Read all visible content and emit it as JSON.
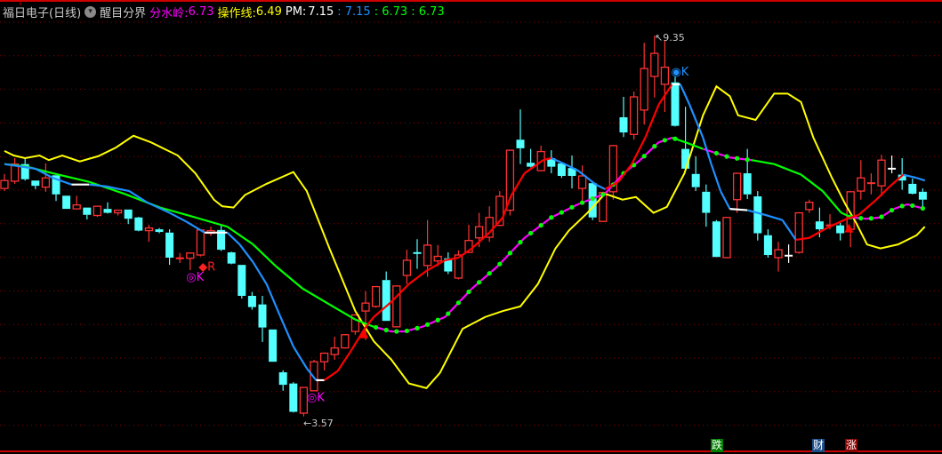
{
  "header": {
    "title": "福日电子(日线)",
    "indicator_icon": "chevron-down-circle-icon",
    "indicator_name": "醒目分界",
    "fsl_label": "分水岭:",
    "fsl_value": "6.73",
    "czx_label": "操作线:",
    "czx_value": "6.49",
    "pm_label": "PM:",
    "pm_v1": "7.15",
    "pm_v2": ": 7.15",
    "pm_v3": ": 6.73",
    "pm_v4": ": 6.73"
  },
  "colors": {
    "up": "#ff3232",
    "down": "#54ffff",
    "doji_white": "#ffffff",
    "fsl": "#ff00ff",
    "czx": "#ffff00",
    "pm_blue": "#1e90ff",
    "green": "#00ff00",
    "grid": "#8b0000",
    "border": "#cc0000"
  },
  "badges": [
    {
      "label": "跌",
      "color": "#008000"
    },
    {
      "label": "财",
      "color": "#1c4f8a"
    },
    {
      "label": "涨",
      "color": "#8b0000"
    }
  ],
  "chart_data": {
    "type": "candlestick",
    "price_range": [
      3.0,
      9.89
    ],
    "grid": true,
    "high_label": "9.35",
    "low_label": "3.57",
    "candles_ohlc": [
      [
        7.03,
        7.25,
        6.99,
        7.15
      ],
      [
        7.14,
        7.49,
        7.1,
        7.4
      ],
      [
        7.4,
        7.49,
        7.15,
        7.17
      ],
      [
        7.15,
        7.15,
        7.02,
        7.07
      ],
      [
        7.05,
        7.41,
        6.98,
        7.19
      ],
      [
        7.23,
        7.23,
        6.84,
        6.94
      ],
      [
        6.92,
        6.92,
        6.72,
        6.72
      ],
      [
        6.72,
        6.92,
        6.72,
        6.78
      ],
      [
        6.74,
        6.74,
        6.56,
        6.63
      ],
      [
        6.62,
        6.77,
        6.6,
        6.76
      ],
      [
        6.72,
        6.82,
        6.65,
        6.66
      ],
      [
        6.66,
        6.71,
        6.62,
        6.7
      ],
      [
        6.71,
        6.71,
        6.49,
        6.57
      ],
      [
        6.59,
        6.6,
        6.38,
        6.39
      ],
      [
        6.39,
        6.48,
        6.22,
        6.43
      ],
      [
        6.41,
        6.43,
        6.35,
        6.37
      ],
      [
        6.36,
        6.41,
        5.87,
        5.98
      ],
      [
        5.96,
        6.05,
        5.9,
        5.97
      ],
      [
        5.97,
        6.06,
        5.79,
        6.05
      ],
      [
        6.02,
        6.41,
        6.0,
        6.4
      ],
      [
        6.35,
        6.45,
        6.31,
        6.39
      ],
      [
        6.4,
        6.48,
        6.08,
        6.1
      ],
      [
        6.06,
        6.07,
        5.88,
        5.89
      ],
      [
        5.87,
        5.87,
        5.36,
        5.4
      ],
      [
        5.4,
        5.46,
        5.19,
        5.23
      ],
      [
        5.27,
        5.4,
        4.7,
        4.92
      ],
      [
        4.89,
        4.89,
        4.4,
        4.4
      ],
      [
        4.24,
        4.27,
        3.96,
        4.05
      ],
      [
        4.07,
        4.09,
        3.63,
        3.64
      ],
      [
        3.62,
        4.02,
        3.57,
        4.01
      ],
      [
        3.96,
        4.43,
        3.95,
        4.4
      ],
      [
        4.4,
        4.54,
        4.27,
        4.53
      ],
      [
        4.51,
        4.78,
        4.43,
        4.61
      ],
      [
        4.61,
        4.82,
        4.6,
        4.81
      ],
      [
        4.86,
        5.12,
        4.81,
        5.11
      ],
      [
        5.17,
        5.47,
        4.73,
        5.29
      ],
      [
        5.24,
        5.55,
        5.22,
        5.54
      ],
      [
        5.64,
        5.77,
        5.02,
        5.02
      ],
      [
        4.93,
        5.56,
        4.92,
        5.55
      ],
      [
        5.71,
        6.1,
        5.58,
        5.94
      ],
      [
        6.05,
        6.26,
        5.81,
        6.04
      ],
      [
        5.86,
        6.55,
        5.69,
        6.17
      ],
      [
        5.93,
        6.17,
        5.85,
        6.0
      ],
      [
        5.97,
        6.06,
        5.73,
        5.77
      ],
      [
        5.67,
        6.09,
        5.65,
        6.02
      ],
      [
        6.06,
        6.48,
        6.05,
        6.24
      ],
      [
        6.28,
        6.66,
        6.14,
        6.45
      ],
      [
        6.29,
        6.76,
        6.22,
        6.59
      ],
      [
        6.47,
        6.99,
        6.46,
        6.91
      ],
      [
        6.7,
        7.62,
        6.62,
        7.61
      ],
      [
        7.77,
        8.23,
        7.4,
        7.64
      ],
      [
        7.42,
        7.63,
        7.35,
        7.36
      ],
      [
        7.3,
        7.68,
        7.29,
        7.59
      ],
      [
        7.49,
        7.61,
        7.26,
        7.36
      ],
      [
        7.41,
        7.42,
        7.19,
        7.22
      ],
      [
        7.34,
        7.53,
        7.03,
        7.22
      ],
      [
        7.03,
        7.38,
        6.84,
        7.22
      ],
      [
        7.11,
        7.12,
        6.55,
        6.59
      ],
      [
        6.53,
        6.98,
        6.52,
        6.97
      ],
      [
        6.98,
        7.69,
        6.86,
        7.68
      ],
      [
        8.11,
        8.42,
        7.81,
        7.88
      ],
      [
        7.85,
        8.5,
        7.77,
        8.42
      ],
      [
        8.22,
        9.24,
        8.0,
        8.85
      ],
      [
        8.73,
        9.35,
        8.41,
        9.08
      ],
      [
        8.61,
        9.28,
        8.19,
        8.87
      ],
      [
        8.64,
        8.73,
        7.97,
        7.98
      ],
      [
        7.63,
        8.27,
        7.3,
        7.33
      ],
      [
        7.25,
        7.52,
        6.99,
        7.05
      ],
      [
        6.98,
        7.09,
        6.45,
        6.66
      ],
      [
        6.53,
        6.55,
        5.99,
        5.99
      ],
      [
        5.98,
        6.6,
        5.97,
        6.59
      ],
      [
        6.86,
        7.27,
        6.66,
        7.26
      ],
      [
        7.26,
        7.63,
        6.87,
        6.94
      ],
      [
        6.91,
        6.99,
        6.24,
        6.35
      ],
      [
        6.32,
        6.41,
        5.98,
        6.02
      ],
      [
        5.98,
        6.22,
        5.77,
        6.1
      ],
      [
        6.01,
        6.18,
        5.9,
        6.01
      ],
      [
        6.06,
        6.67,
        6.04,
        6.66
      ],
      [
        6.71,
        6.86,
        6.66,
        6.82
      ],
      [
        6.53,
        6.74,
        6.29,
        6.41
      ],
      [
        6.46,
        6.64,
        6.41,
        6.47
      ],
      [
        6.47,
        6.52,
        6.24,
        6.35
      ],
      [
        6.41,
        6.99,
        6.14,
        6.98
      ],
      [
        6.99,
        7.46,
        6.86,
        7.19
      ],
      [
        7.1,
        7.26,
        6.94,
        7.11
      ],
      [
        7.07,
        7.54,
        6.91,
        7.46
      ],
      [
        7.33,
        7.53,
        7.26,
        7.33
      ],
      [
        7.24,
        7.49,
        7.01,
        7.15
      ],
      [
        7.1,
        7.18,
        6.94,
        6.95
      ],
      [
        6.98,
        7.03,
        6.75,
        6.86
      ]
    ],
    "white_doji_bars": [
      76,
      86
    ],
    "series": [
      {
        "name": "操作线",
        "color": "#ffff00",
        "points": [
          [
            0,
            7.6
          ],
          [
            0.9,
            7.53
          ],
          [
            2,
            7.49
          ],
          [
            3.4,
            7.53
          ],
          [
            4.3,
            7.46
          ],
          [
            5.6,
            7.53
          ],
          [
            7.3,
            7.44
          ],
          [
            9.1,
            7.52
          ],
          [
            10.8,
            7.65
          ],
          [
            12.5,
            7.83
          ],
          [
            14.2,
            7.73
          ],
          [
            16.8,
            7.53
          ],
          [
            18.5,
            7.26
          ],
          [
            20.3,
            6.86
          ],
          [
            21.1,
            6.76
          ],
          [
            22.2,
            6.74
          ],
          [
            23.3,
            6.93
          ],
          [
            25.4,
            7.1
          ],
          [
            28,
            7.28
          ],
          [
            29.3,
            6.99
          ],
          [
            31.5,
            6.12
          ],
          [
            34,
            5.17
          ],
          [
            35.8,
            4.71
          ],
          [
            37.5,
            4.43
          ],
          [
            39.2,
            4.07
          ],
          [
            40.9,
            4.0
          ],
          [
            42.2,
            4.23
          ],
          [
            44.4,
            4.9
          ],
          [
            46.6,
            5.08
          ],
          [
            48.3,
            5.17
          ],
          [
            50,
            5.24
          ],
          [
            51.7,
            5.58
          ],
          [
            53.4,
            6.12
          ],
          [
            54.7,
            6.39
          ],
          [
            56.5,
            6.66
          ],
          [
            58.2,
            6.95
          ],
          [
            59.9,
            6.86
          ],
          [
            61.2,
            6.9
          ],
          [
            62.9,
            6.66
          ],
          [
            64.2,
            6.75
          ],
          [
            65.9,
            7.26
          ],
          [
            67.7,
            8.14
          ],
          [
            69,
            8.58
          ],
          [
            70.3,
            8.43
          ],
          [
            71.1,
            8.14
          ],
          [
            72.8,
            8.07
          ],
          [
            74.6,
            8.47
          ],
          [
            75.9,
            8.47
          ],
          [
            77.2,
            8.34
          ],
          [
            78.4,
            7.8
          ],
          [
            80.2,
            7.19
          ],
          [
            81.5,
            6.79
          ],
          [
            82.5,
            6.52
          ],
          [
            83.6,
            6.18
          ],
          [
            84.9,
            6.12
          ],
          [
            86.6,
            6.18
          ],
          [
            88.4,
            6.32
          ],
          [
            89.2,
            6.45
          ]
        ]
      },
      {
        "name": "分水岭",
        "color": "#00ff00",
        "alt_color": "#ff00ff",
        "alt_ranges": [
          [
            36,
            65
          ],
          [
            69,
            72
          ],
          [
            82,
            89.2
          ]
        ],
        "points": [
          [
            0,
            7.4
          ],
          [
            2.2,
            7.36
          ],
          [
            4.7,
            7.26
          ],
          [
            8.2,
            7.13
          ],
          [
            11.6,
            6.95
          ],
          [
            15.1,
            6.74
          ],
          [
            18.5,
            6.59
          ],
          [
            21.6,
            6.45
          ],
          [
            24.1,
            6.18
          ],
          [
            26.3,
            5.85
          ],
          [
            28.9,
            5.51
          ],
          [
            31.5,
            5.27
          ],
          [
            34,
            5.04
          ],
          [
            35.8,
            4.93
          ],
          [
            37.5,
            4.86
          ],
          [
            38.8,
            4.86
          ],
          [
            40.5,
            4.93
          ],
          [
            42.7,
            5.08
          ],
          [
            45.3,
            5.51
          ],
          [
            47.8,
            5.85
          ],
          [
            50.4,
            6.28
          ],
          [
            53,
            6.59
          ],
          [
            55.6,
            6.79
          ],
          [
            58.2,
            6.95
          ],
          [
            60,
            7.26
          ],
          [
            61.6,
            7.46
          ],
          [
            63.4,
            7.73
          ],
          [
            64.7,
            7.8
          ],
          [
            66,
            7.73
          ],
          [
            67.7,
            7.63
          ],
          [
            70.3,
            7.5
          ],
          [
            72.4,
            7.46
          ],
          [
            74.6,
            7.4
          ],
          [
            77.2,
            7.24
          ],
          [
            79.3,
            6.99
          ],
          [
            81.1,
            6.66
          ],
          [
            82.1,
            6.59
          ],
          [
            83.6,
            6.57
          ],
          [
            84.9,
            6.59
          ],
          [
            86.2,
            6.72
          ],
          [
            87.5,
            6.79
          ],
          [
            89.2,
            6.72
          ]
        ]
      },
      {
        "name": "PM",
        "up_color": "#ff0000",
        "down_color": "#1e90ff",
        "flat_color": "#ffffff",
        "points": [
          [
            0,
            7.4
          ],
          [
            3,
            7.33
          ],
          [
            4.7,
            7.19
          ],
          [
            6.5,
            7.09
          ],
          [
            8.2,
            7.09
          ],
          [
            9.9,
            7.06
          ],
          [
            12.1,
            6.99
          ],
          [
            13.8,
            6.82
          ],
          [
            16,
            6.66
          ],
          [
            17.7,
            6.52
          ],
          [
            19.4,
            6.36
          ],
          [
            21.6,
            6.36
          ],
          [
            22.8,
            6.18
          ],
          [
            24.1,
            5.91
          ],
          [
            25.4,
            5.58
          ],
          [
            26.7,
            5.1
          ],
          [
            28,
            4.63
          ],
          [
            29.3,
            4.3
          ],
          [
            30.2,
            4.12
          ],
          [
            31,
            4.12
          ],
          [
            32.3,
            4.26
          ],
          [
            33.6,
            4.57
          ],
          [
            34.9,
            4.9
          ],
          [
            35.8,
            5.08
          ],
          [
            37.5,
            5.31
          ],
          [
            39.2,
            5.58
          ],
          [
            40.9,
            5.78
          ],
          [
            42.7,
            5.94
          ],
          [
            44,
            5.98
          ],
          [
            45.3,
            6.12
          ],
          [
            47,
            6.36
          ],
          [
            48.3,
            6.59
          ],
          [
            49.1,
            6.92
          ],
          [
            50.4,
            7.26
          ],
          [
            52.2,
            7.46
          ],
          [
            53,
            7.49
          ],
          [
            54.3,
            7.4
          ],
          [
            55.6,
            7.3
          ],
          [
            57.3,
            7.09
          ],
          [
            58.2,
            7.02
          ],
          [
            59.5,
            7.13
          ],
          [
            60.8,
            7.4
          ],
          [
            62.1,
            7.8
          ],
          [
            63.4,
            8.3
          ],
          [
            64.7,
            8.61
          ],
          [
            65.5,
            8.61
          ],
          [
            66.4,
            8.3
          ],
          [
            67.7,
            7.8
          ],
          [
            68.5,
            7.4
          ],
          [
            69.4,
            6.99
          ],
          [
            70.3,
            6.72
          ],
          [
            72,
            6.7
          ],
          [
            73.7,
            6.63
          ],
          [
            75.4,
            6.55
          ],
          [
            76.7,
            6.25
          ],
          [
            78,
            6.28
          ],
          [
            79.7,
            6.43
          ],
          [
            81.5,
            6.56
          ],
          [
            82.8,
            6.63
          ],
          [
            84.5,
            6.86
          ],
          [
            85.8,
            7.06
          ],
          [
            87.1,
            7.24
          ],
          [
            88.4,
            7.19
          ],
          [
            89.2,
            7.15
          ]
        ]
      }
    ],
    "annotations": [
      {
        "text": "◆R",
        "bar": 19.5,
        "price": 5.85,
        "color": "#ff2020"
      },
      {
        "text": "◎K",
        "bar": 18.3,
        "price": 5.7,
        "color": "#ff00ff"
      },
      {
        "text": "◎K",
        "bar": 30,
        "price": 3.87,
        "color": "#ff00ff"
      },
      {
        "text": "◉K",
        "bar": 65.3,
        "price": 8.81,
        "color": "#1e90ff"
      },
      {
        "text": "▲",
        "bar": 35.1,
        "price": 4.85,
        "color": "#ff0000"
      },
      {
        "text": "▲",
        "bar": 82.1,
        "price": 6.45,
        "color": "#ff0000"
      }
    ]
  }
}
